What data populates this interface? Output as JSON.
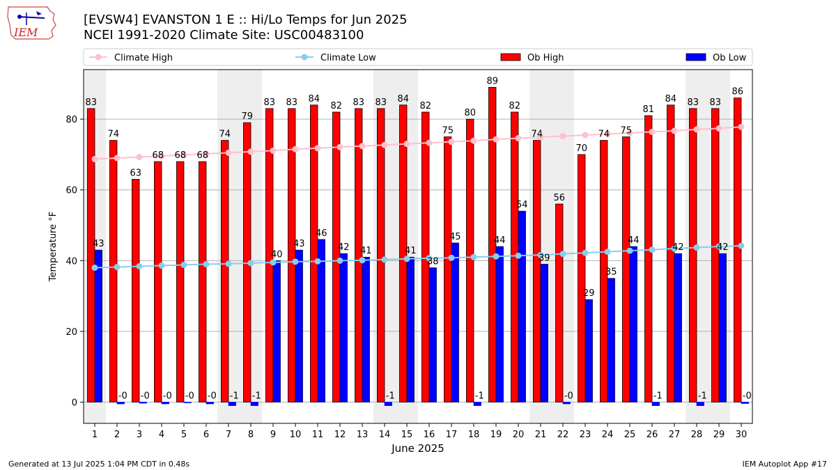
{
  "header": {
    "title_line1": "[EVSW4] EVANSTON 1 E :: Hi/Lo Temps for Jun 2025",
    "title_line2": "NCEI 1991-2020 Climate Site: USC00483100",
    "logo_text": "IEM"
  },
  "footer": {
    "left": "Generated at 13 Jul 2025 1:04 PM CDT in 0.48s",
    "right": "IEM Autoplot App #17"
  },
  "chart_data": {
    "type": "bar",
    "xlabel": "June 2025",
    "ylabel": "Temperature °F",
    "ylim": [
      -6,
      94
    ],
    "yticks": [
      0,
      20,
      40,
      60,
      80
    ],
    "grid": true,
    "legend_position": "top",
    "categories": [
      "1",
      "2",
      "3",
      "4",
      "5",
      "6",
      "7",
      "8",
      "9",
      "10",
      "11",
      "12",
      "13",
      "14",
      "15",
      "16",
      "17",
      "18",
      "19",
      "20",
      "21",
      "22",
      "23",
      "24",
      "25",
      "26",
      "27",
      "28",
      "29",
      "30"
    ],
    "shaded_day_ranges": [
      [
        1,
        1
      ],
      [
        7,
        8
      ],
      [
        14,
        15
      ],
      [
        21,
        22
      ],
      [
        28,
        29
      ]
    ],
    "series": [
      {
        "name": "Climate High",
        "kind": "line",
        "color": "#ffc0cb",
        "values": [
          68.7,
          69.0,
          69.3,
          69.6,
          69.9,
          70.2,
          70.5,
          70.8,
          71.1,
          71.5,
          71.8,
          72.1,
          72.4,
          72.7,
          73.0,
          73.3,
          73.6,
          73.9,
          74.3,
          74.6,
          74.9,
          75.2,
          75.5,
          75.8,
          76.1,
          76.4,
          76.7,
          77.1,
          77.4,
          77.8
        ]
      },
      {
        "name": "Climate Low",
        "kind": "line",
        "color": "#87ceeb",
        "values": [
          38.0,
          38.2,
          38.4,
          38.6,
          38.8,
          39.0,
          39.1,
          39.3,
          39.5,
          39.7,
          39.8,
          40.0,
          40.1,
          40.3,
          40.5,
          40.7,
          40.8,
          41.0,
          41.2,
          41.4,
          41.6,
          41.9,
          42.2,
          42.5,
          42.8,
          43.1,
          43.4,
          43.7,
          44.0,
          44.2
        ]
      },
      {
        "name": "Ob High",
        "kind": "bar",
        "color": "#ff0000",
        "values": [
          83,
          74,
          63,
          68,
          68,
          68,
          74,
          79,
          83,
          83,
          84,
          82,
          83,
          83,
          84,
          82,
          75,
          80,
          89,
          82,
          74,
          56,
          70,
          74,
          75,
          81,
          84,
          83,
          83,
          86
        ]
      },
      {
        "name": "Ob Low",
        "kind": "bar",
        "color": "#0000ff",
        "values": [
          43,
          -0.5,
          -0.3,
          -0.5,
          -0.2,
          -0.5,
          -1,
          -1,
          40,
          43,
          46,
          42,
          41,
          -1,
          41,
          38,
          45,
          -1,
          44,
          54,
          39,
          -0.5,
          29,
          35,
          44,
          -1,
          42,
          -1,
          42,
          -0.4
        ]
      }
    ],
    "data_labels": {
      "high": [
        "83",
        "74",
        "63",
        "68",
        "68",
        "68",
        "74",
        "79",
        "83",
        "83",
        "84",
        "82",
        "83",
        "83",
        "84",
        "82",
        "75",
        "80",
        "89",
        "82",
        "74",
        "56",
        "70",
        "74",
        "75",
        "81",
        "84",
        "83",
        "83",
        "86"
      ],
      "low": [
        "43",
        "-0",
        "-0",
        "-0",
        "-0",
        "-0",
        "-1",
        "-1",
        "40",
        "43",
        "46",
        "42",
        "41",
        "-1",
        "41",
        "38",
        "45",
        "-1",
        "44",
        "54",
        "39",
        "-0",
        "29",
        "35",
        "44",
        "-1",
        "42",
        "-1",
        "42",
        "-0"
      ]
    }
  }
}
